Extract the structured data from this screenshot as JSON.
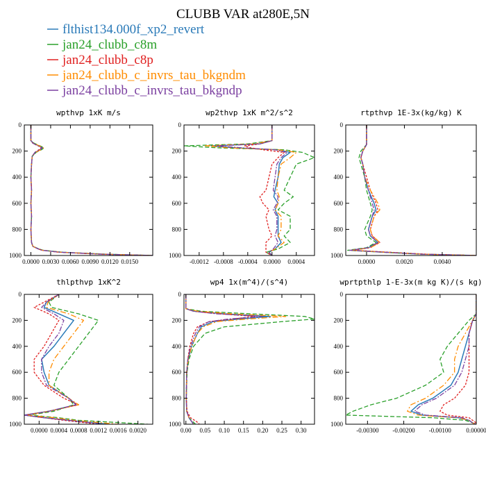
{
  "figure": {
    "title": "CLUBB VAR at280E,5N",
    "legend": [
      {
        "label": "flthist134.000f_xp2_revert",
        "color": "#2a7ab8"
      },
      {
        "label": "jan24_clubb_c8m",
        "color": "#2aa02a"
      },
      {
        "label": "jan24_clubb_c8p",
        "color": "#e02020"
      },
      {
        "label": "jan24_clubb_c_invrs_tau_bkgndm",
        "color": "#ff8c00"
      },
      {
        "label": "jan24_clubb_c_invrs_tau_bkgndp",
        "color": "#7b3fa0"
      }
    ]
  },
  "chart_data": [
    {
      "type": "line",
      "title": "wpthvp  1xK m/s",
      "xlim": [
        -0.001,
        0.0185
      ],
      "ylim": [
        1000,
        0
      ],
      "xticks": [
        "0.0000",
        "0.0030",
        "0.0060",
        "0.0090",
        "0.0120",
        "0.0150"
      ],
      "xtick_values": [
        0,
        0.003,
        0.006,
        0.009,
        0.012,
        0.015
      ],
      "yticks": [
        "0",
        "200",
        "400",
        "600",
        "800",
        "1000"
      ],
      "ytick_values": [
        0,
        200,
        400,
        600,
        800,
        1000
      ],
      "y": [
        0,
        120,
        140,
        160,
        175,
        190,
        210,
        240,
        300,
        400,
        500,
        600,
        700,
        800,
        900,
        930,
        950,
        960,
        975,
        990,
        1000
      ],
      "series": [
        {
          "values": [
            0,
            0,
            0.0004,
            0.0012,
            0.0018,
            0.0014,
            0.0007,
            0.0002,
            0.0001,
            0,
            0.0001,
            0,
            0.0001,
            0,
            0.0001,
            0.0003,
            0.0012,
            0.0018,
            0.0045,
            0.011,
            0.0185
          ]
        },
        {
          "values": [
            0,
            0,
            0.0005,
            0.0014,
            0.002,
            0.0016,
            0.0008,
            0.0002,
            0.0001,
            0,
            0.0001,
            0,
            0.0001,
            0,
            0.0001,
            0.0003,
            0.0012,
            0.0019,
            0.0048,
            0.0115,
            0.0185
          ]
        },
        {
          "values": [
            0,
            0,
            0.0003,
            0.0011,
            0.0016,
            0.0012,
            0.0006,
            0.0002,
            0.0001,
            0,
            0.0001,
            0,
            0.0001,
            0,
            0.0001,
            0.0003,
            0.0011,
            0.0017,
            0.0042,
            0.0105,
            0.0185
          ]
        },
        {
          "values": [
            0,
            0,
            0.0004,
            0.0013,
            0.0019,
            0.0015,
            0.0007,
            0.0002,
            0.0001,
            0,
            0.0001,
            0,
            0.0001,
            0,
            0.0001,
            0.0003,
            0.0012,
            0.0018,
            0.0046,
            0.0112,
            0.0185
          ]
        },
        {
          "values": [
            0,
            0,
            0.0003,
            0.0011,
            0.0017,
            0.0013,
            0.0006,
            0.0002,
            0.0001,
            0,
            0.0001,
            0,
            0.0001,
            0,
            0.0001,
            0.0003,
            0.0011,
            0.0017,
            0.0044,
            0.0108,
            0.0185
          ]
        }
      ]
    },
    {
      "type": "line",
      "title": "wp2thvp  1xK m^2/s^2",
      "xlim": [
        -0.00145,
        0.0007
      ],
      "ylim": [
        1000,
        0
      ],
      "xticks": [
        "-0.0012",
        "-0.0008",
        "-0.0004",
        "0.0000",
        "0.0004"
      ],
      "xtick_values": [
        -0.0012,
        -0.0008,
        -0.0004,
        0,
        0.0004
      ],
      "yticks": [
        "0",
        "200",
        "400",
        "600",
        "800",
        "1000"
      ],
      "ytick_values": [
        0,
        200,
        400,
        600,
        800,
        1000
      ],
      "y": [
        0,
        120,
        145,
        160,
        175,
        190,
        210,
        250,
        300,
        400,
        500,
        550,
        600,
        650,
        700,
        800,
        850,
        900,
        950,
        975,
        1000
      ],
      "series": [
        {
          "values": [
            0,
            0,
            -0.0002,
            -0.001,
            -0.0006,
            0.0001,
            0.0003,
            0.00018,
            0.00012,
            0.0001,
            5e-05,
            3e-05,
            0.0001,
            5e-05,
            0.0001,
            0.0001,
            0.0001,
            0.00015,
            5e-05,
            -5e-05,
            0
          ]
        },
        {
          "values": [
            0,
            0,
            -0.0004,
            -0.00145,
            -0.0009,
            0.0002,
            0.0005,
            0.0007,
            0.0004,
            0.0003,
            0.0002,
            0.00035,
            0.0002,
            0.0001,
            0.0003,
            0.0003,
            0.0002,
            0.0003,
            0.0001,
            -0.0001,
            0
          ]
        },
        {
          "values": [
            0,
            0,
            -0.0002,
            -0.00045,
            -0.00035,
            -0.00015,
            0.0002,
            0.0001,
            0,
            -5e-05,
            -0.0001,
            -0.0002,
            -0.00015,
            -5e-05,
            -0.0001,
            -5e-05,
            0,
            -0.0001,
            -0.0001,
            -0.0001,
            0
          ]
        },
        {
          "values": [
            0,
            0,
            -0.0003,
            -0.0011,
            -0.0007,
            0.0001,
            0.0004,
            0.0003,
            0.00015,
            0.0001,
            8e-05,
            0.00012,
            0.0001,
            5e-05,
            0.00015,
            0.00015,
            0.0001,
            0.0002,
            5e-05,
            -5e-05,
            0
          ]
        },
        {
          "values": [
            0,
            0,
            -0.0002,
            -0.0009,
            -0.0005,
            5e-05,
            0.00025,
            0.00015,
            8e-05,
            5e-05,
            2e-05,
            0.0001,
            8e-05,
            2e-05,
            8e-05,
            8e-05,
            5e-05,
            0.0001,
            2e-05,
            -5e-05,
            0
          ]
        }
      ]
    },
    {
      "type": "line",
      "title": "rtpthvp  1E-3x(kg/kg) K",
      "xlim": [
        -0.0011,
        0.0058
      ],
      "ylim": [
        1000,
        0
      ],
      "xticks": [
        "0.0000",
        "0.0020",
        "0.0040"
      ],
      "xtick_values": [
        0,
        0.002,
        0.004
      ],
      "yticks": [
        "0",
        "200",
        "400",
        "600",
        "800",
        "1000"
      ],
      "ytick_values": [
        0,
        200,
        400,
        600,
        800,
        1000
      ],
      "y": [
        0,
        150,
        200,
        250,
        300,
        400,
        500,
        600,
        650,
        700,
        800,
        850,
        900,
        940,
        960,
        975,
        990,
        1000
      ],
      "series": [
        {
          "values": [
            0,
            0,
            -0.0002,
            -0.0003,
            -0.0002,
            -0.0001,
            0.0001,
            0.0004,
            0.0005,
            0.0003,
            0.0001,
            0.0002,
            0.0006,
            0.0001,
            -0.0008,
            0.001,
            0.003,
            0.0058
          ]
        },
        {
          "values": [
            0,
            0,
            -0.0003,
            -0.0004,
            -0.0003,
            -0.0001,
            0,
            0.0002,
            0.0003,
            0.0002,
            -0.0001,
            0,
            0.0005,
            0,
            -0.001,
            0.0008,
            0.0028,
            0.0058
          ]
        },
        {
          "values": [
            0,
            0,
            -0.0002,
            -0.0003,
            -0.0002,
            0,
            0.0002,
            0.0005,
            0.0006,
            0.0004,
            0.0002,
            0.0003,
            0.0007,
            0.0002,
            -0.0007,
            0.0012,
            0.0032,
            0.0058
          ]
        },
        {
          "values": [
            0,
            0,
            -0.0002,
            -0.0003,
            -0.0002,
            -0.0001,
            0.0002,
            0.0006,
            0.0007,
            0.0004,
            0.0002,
            0.0003,
            0.0007,
            0.0002,
            -0.0008,
            0.001,
            0.003,
            0.0058
          ]
        },
        {
          "values": [
            0,
            0,
            -0.0002,
            -0.0003,
            -0.0002,
            -0.0001,
            0.0001,
            0.0003,
            0.0004,
            0.0003,
            0.0001,
            0.0002,
            0.0006,
            0.0001,
            -0.0009,
            0.0009,
            0.0029,
            0.0058
          ]
        }
      ]
    },
    {
      "type": "line",
      "title": "thlpthvp  1xK^2",
      "xlim": [
        -0.0003,
        0.0023
      ],
      "ylim": [
        1000,
        0
      ],
      "xticks": [
        "0.0000",
        "0.0004",
        "0.0008",
        "0.0012",
        "0.0016",
        "0.0020"
      ],
      "xtick_values": [
        0,
        0.0004,
        0.0008,
        0.0012,
        0.0016,
        0.002
      ],
      "yticks": [
        "0",
        "200",
        "400",
        "600",
        "800",
        "1000"
      ],
      "ytick_values": [
        0,
        200,
        400,
        600,
        800,
        1000
      ],
      "y": [
        0,
        60,
        100,
        150,
        200,
        300,
        400,
        500,
        600,
        700,
        800,
        850,
        900,
        930,
        950,
        970,
        1000
      ],
      "series": [
        {
          "values": [
            0.0004,
            0.00015,
            0.0001,
            0.0004,
            0.0007,
            0.0005,
            0.0003,
            5e-05,
            0.0001,
            0.0002,
            0.0006,
            0.00075,
            0.0002,
            -0.0003,
            0.0001,
            0.0006,
            0.0014
          ]
        },
        {
          "values": [
            0.0004,
            0.0002,
            0.00025,
            0.0008,
            0.0012,
            0.001,
            0.0008,
            0.0006,
            0.0004,
            0.0003,
            0.0006,
            0.0007,
            0.0003,
            -0.0002,
            0.0004,
            0.0008,
            0.0022
          ]
        },
        {
          "values": [
            0.0004,
            0.0001,
            -0.0001,
            0.0002,
            0.0004,
            0.00025,
            0.0001,
            -0.0001,
            -0.0001,
            0.0001,
            0.0005,
            0.0008,
            0.0002,
            -0.0003,
            0.0001,
            0.0005,
            0.0012
          ]
        },
        {
          "values": [
            0.0004,
            0.00018,
            0.00015,
            0.0006,
            0.0009,
            0.0007,
            0.0005,
            0.0003,
            0.0002,
            0.0002,
            0.0006,
            0.0008,
            0.0002,
            -0.00025,
            0.0003,
            0.0007,
            0.0016
          ]
        },
        {
          "values": [
            0.0004,
            0.00015,
            5e-05,
            0.0003,
            0.0005,
            0.0004,
            0.0002,
            5e-05,
            5e-05,
            0.00015,
            0.0006,
            0.00075,
            0.0002,
            -0.0003,
            0.0001,
            0.0006,
            0.0013
          ]
        }
      ]
    },
    {
      "type": "line",
      "title": "wp4  1x(m^4)/(s^4)",
      "xlim": [
        -0.005,
        0.335
      ],
      "ylim": [
        1000,
        0
      ],
      "xticks": [
        "0.00",
        "0.05",
        "0.10",
        "0.15",
        "0.20",
        "0.25",
        "0.30"
      ],
      "xtick_values": [
        0,
        0.05,
        0.1,
        0.15,
        0.2,
        0.25,
        0.3
      ],
      "yticks": [
        "0",
        "200",
        "400",
        "600",
        "800",
        "1000"
      ],
      "ytick_values": [
        0,
        200,
        400,
        600,
        800,
        1000
      ],
      "y": [
        0,
        110,
        130,
        150,
        170,
        190,
        210,
        250,
        300,
        400,
        500,
        600,
        800,
        900,
        950,
        980,
        1000
      ],
      "series": [
        {
          "values": [
            0,
            0,
            0.02,
            0.1,
            0.22,
            0.14,
            0.07,
            0.04,
            0.03,
            0.015,
            0.006,
            0.002,
            0.001,
            0.002,
            0.008,
            0.015,
            0.02
          ]
        },
        {
          "values": [
            0,
            0,
            0.04,
            0.17,
            0.31,
            0.335,
            0.25,
            0.1,
            0.05,
            0.02,
            0.008,
            0.003,
            0.001,
            0.002,
            0.008,
            0.018,
            0.025
          ]
        },
        {
          "values": [
            0,
            0,
            0.02,
            0.09,
            0.18,
            0.12,
            0.06,
            0.03,
            0.02,
            0.01,
            0.005,
            0.002,
            0.001,
            0.003,
            0.012,
            0.028,
            0.035
          ]
        },
        {
          "values": [
            0,
            0,
            0.03,
            0.12,
            0.26,
            0.16,
            0.08,
            0.045,
            0.03,
            0.015,
            0.006,
            0.002,
            0.001,
            0.002,
            0.008,
            0.015,
            0.02
          ]
        },
        {
          "values": [
            0,
            0,
            0.02,
            0.08,
            0.2,
            0.11,
            0.06,
            0.035,
            0.025,
            0.012,
            0.005,
            0.002,
            0.001,
            0.002,
            0.008,
            0.015,
            0.02
          ]
        }
      ]
    },
    {
      "type": "line",
      "title": "wprtpthlp  1-E-3x(m kg K)/(s kg)",
      "xlim": [
        -0.0036,
        0.0
      ],
      "ylim": [
        1000,
        0
      ],
      "xticks": [
        "-0.00300",
        "-0.00200",
        "-0.00100",
        "0.00000"
      ],
      "xtick_values": [
        -0.003,
        -0.002,
        -0.001,
        0
      ],
      "yticks": [
        "0",
        "200",
        "400",
        "600",
        "800",
        "1000"
      ],
      "ytick_values": [
        0,
        200,
        400,
        600,
        800,
        1000
      ],
      "y": [
        0,
        150,
        200,
        300,
        400,
        500,
        600,
        700,
        800,
        850,
        900,
        930,
        950,
        970,
        990,
        1000
      ],
      "series": [
        {
          "values": [
            0,
            0,
            -0.0001,
            -0.0002,
            -0.0003,
            -0.0004,
            -0.0005,
            -0.0007,
            -0.0012,
            -0.0016,
            -0.0018,
            -0.0015,
            -0.0005,
            -0.0002,
            -0.0001,
            0
          ]
        },
        {
          "values": [
            0,
            0,
            -0.0002,
            -0.0005,
            -0.0008,
            -0.001,
            -0.0009,
            -0.0014,
            -0.0022,
            -0.0029,
            -0.0034,
            -0.0036,
            -0.0012,
            -0.0003,
            -0.0001,
            0
          ]
        },
        {
          "values": [
            0,
            0,
            -0.0001,
            -0.0002,
            -0.0002,
            -0.0002,
            -0.0002,
            -0.0003,
            -0.0006,
            -0.0009,
            -0.001,
            -0.0008,
            -0.0002,
            -0.0001,
            0,
            0
          ]
        },
        {
          "values": [
            0,
            0,
            -0.0001,
            -0.0003,
            -0.0005,
            -0.0006,
            -0.0006,
            -0.0009,
            -0.0014,
            -0.0018,
            -0.0019,
            -0.0016,
            -0.0005,
            -0.0002,
            -0.0001,
            0
          ]
        },
        {
          "values": [
            0,
            0,
            -0.0001,
            -0.0002,
            -0.0002,
            -0.0003,
            -0.0004,
            -0.0006,
            -0.0011,
            -0.0015,
            -0.0017,
            -0.0014,
            -0.0004,
            -0.0002,
            -0.0001,
            0
          ]
        }
      ]
    }
  ]
}
